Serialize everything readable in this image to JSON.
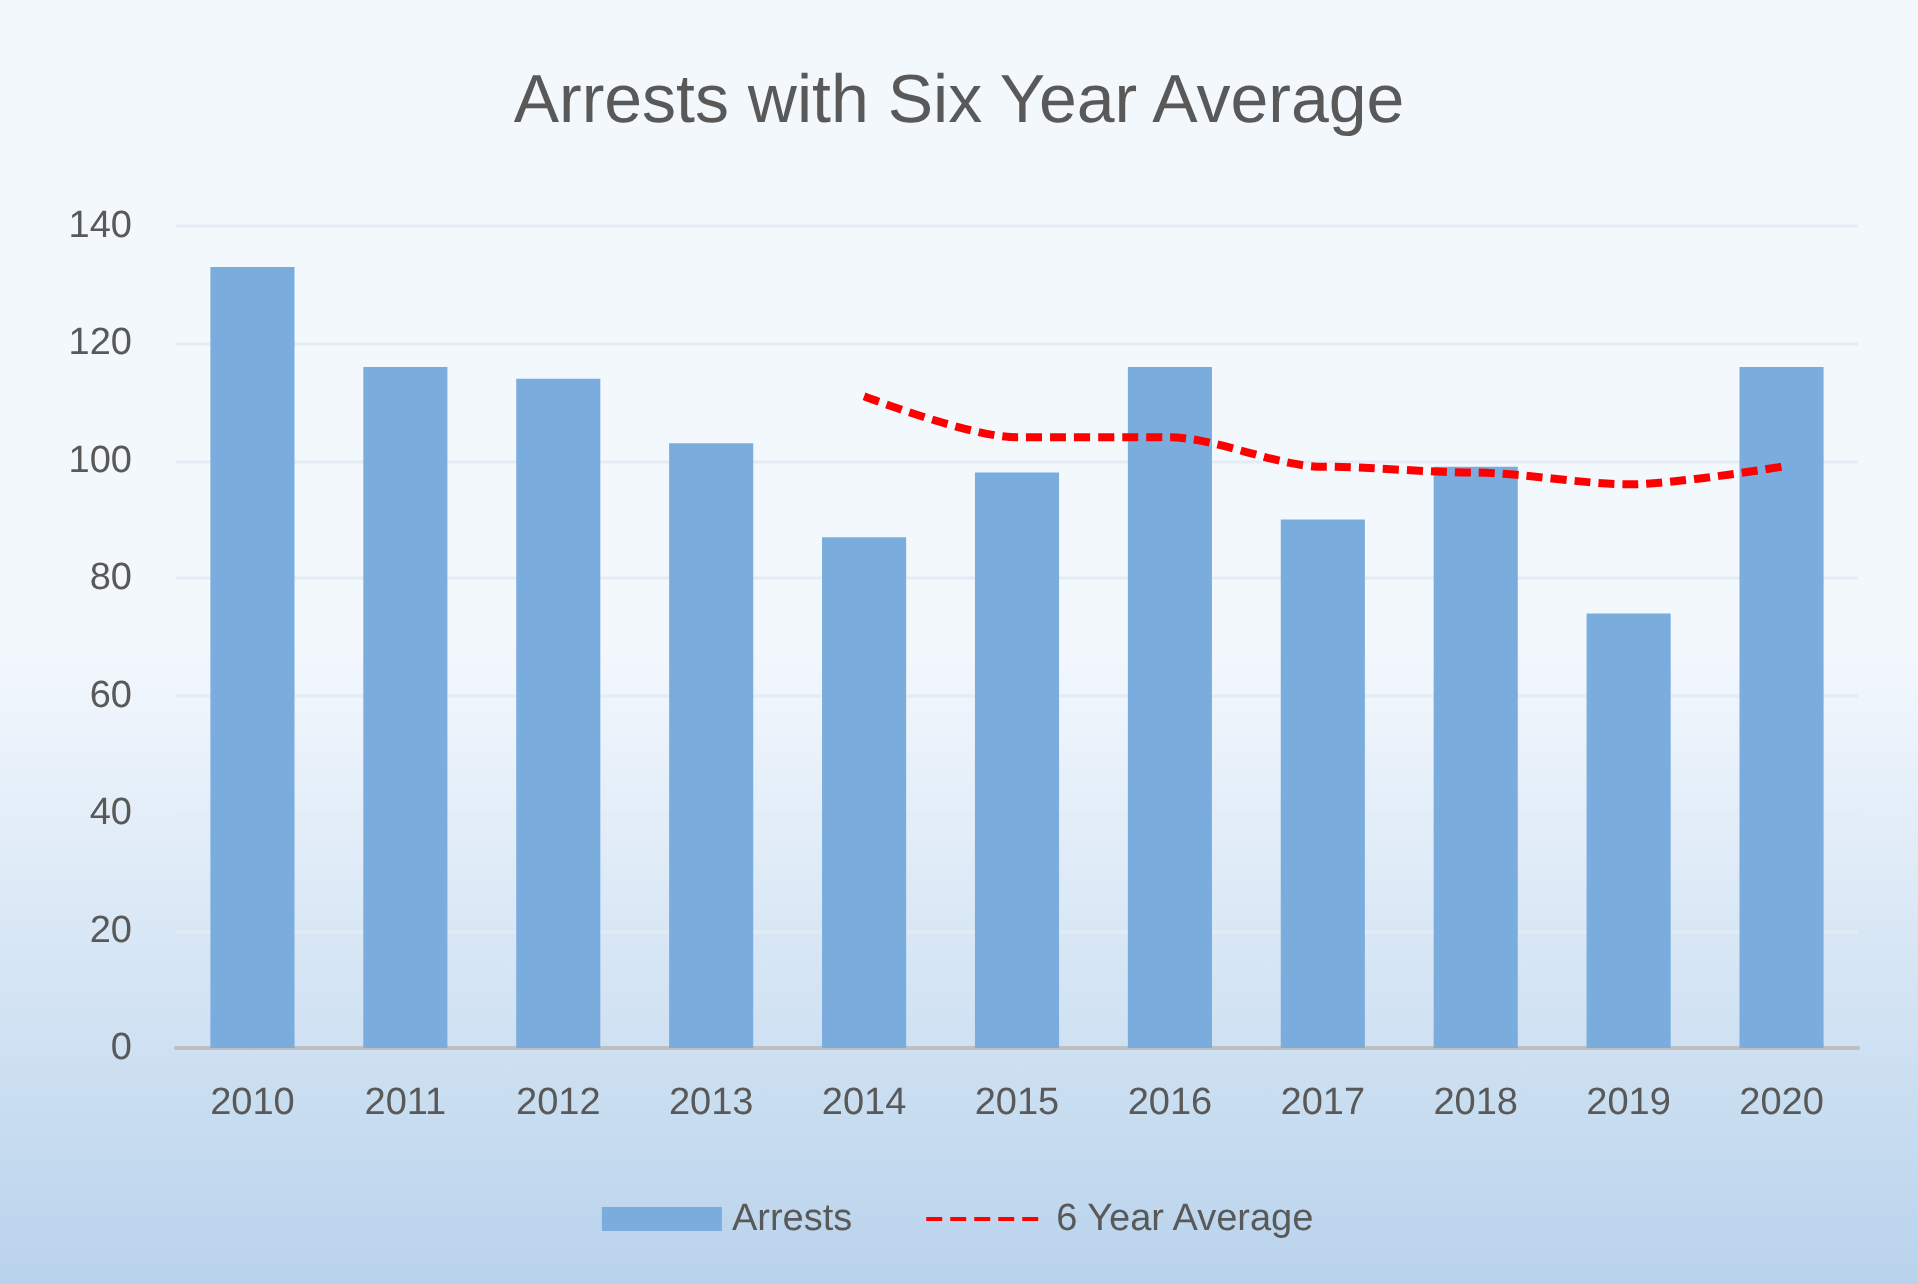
{
  "chart_data": {
    "type": "bar",
    "title": "Arrests with Six Year Average",
    "categories": [
      "2010",
      "2011",
      "2012",
      "2013",
      "2014",
      "2015",
      "2016",
      "2017",
      "2018",
      "2019",
      "2020"
    ],
    "series": [
      {
        "name": "Arrests",
        "color": "#7aacde",
        "values": [
          133,
          116,
          114,
          103,
          87,
          98,
          116,
          90,
          99,
          74,
          116
        ]
      },
      {
        "name": "6 Year Average",
        "type": "line",
        "color": "#ff0000",
        "line_style": "dashed",
        "marker": "none",
        "values": [
          null,
          null,
          null,
          null,
          111,
          104,
          104,
          99,
          98,
          96,
          99
        ]
      }
    ],
    "ylim": [
      0,
      140
    ],
    "yticks": [
      0,
      20,
      40,
      60,
      80,
      100,
      120,
      140
    ],
    "grid": "y",
    "legend": "bottom"
  }
}
